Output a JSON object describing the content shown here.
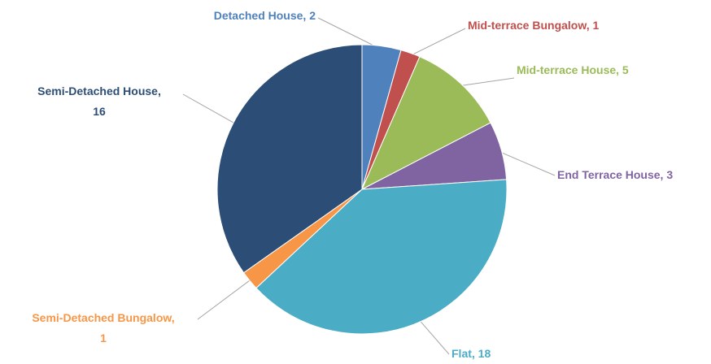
{
  "chart_data": {
    "type": "pie",
    "labels": [
      [
        "Detached House, 2"
      ],
      [
        "Mid-terrace Bungalow, 1"
      ],
      [
        "Mid-terrace House, 5"
      ],
      [
        "End Terrace House, 3"
      ],
      [
        "Flat, 18"
      ],
      [
        "Semi-Detached Bungalow,",
        "1"
      ],
      [
        "Semi-Detached House,",
        "16"
      ]
    ],
    "values": [
      2,
      1,
      5,
      3,
      18,
      1,
      16
    ],
    "colors": [
      "#4f81bd",
      "#c0504d",
      "#9bbb59",
      "#8064a2",
      "#4bacc6",
      "#f79646",
      "#2c4d75"
    ]
  }
}
